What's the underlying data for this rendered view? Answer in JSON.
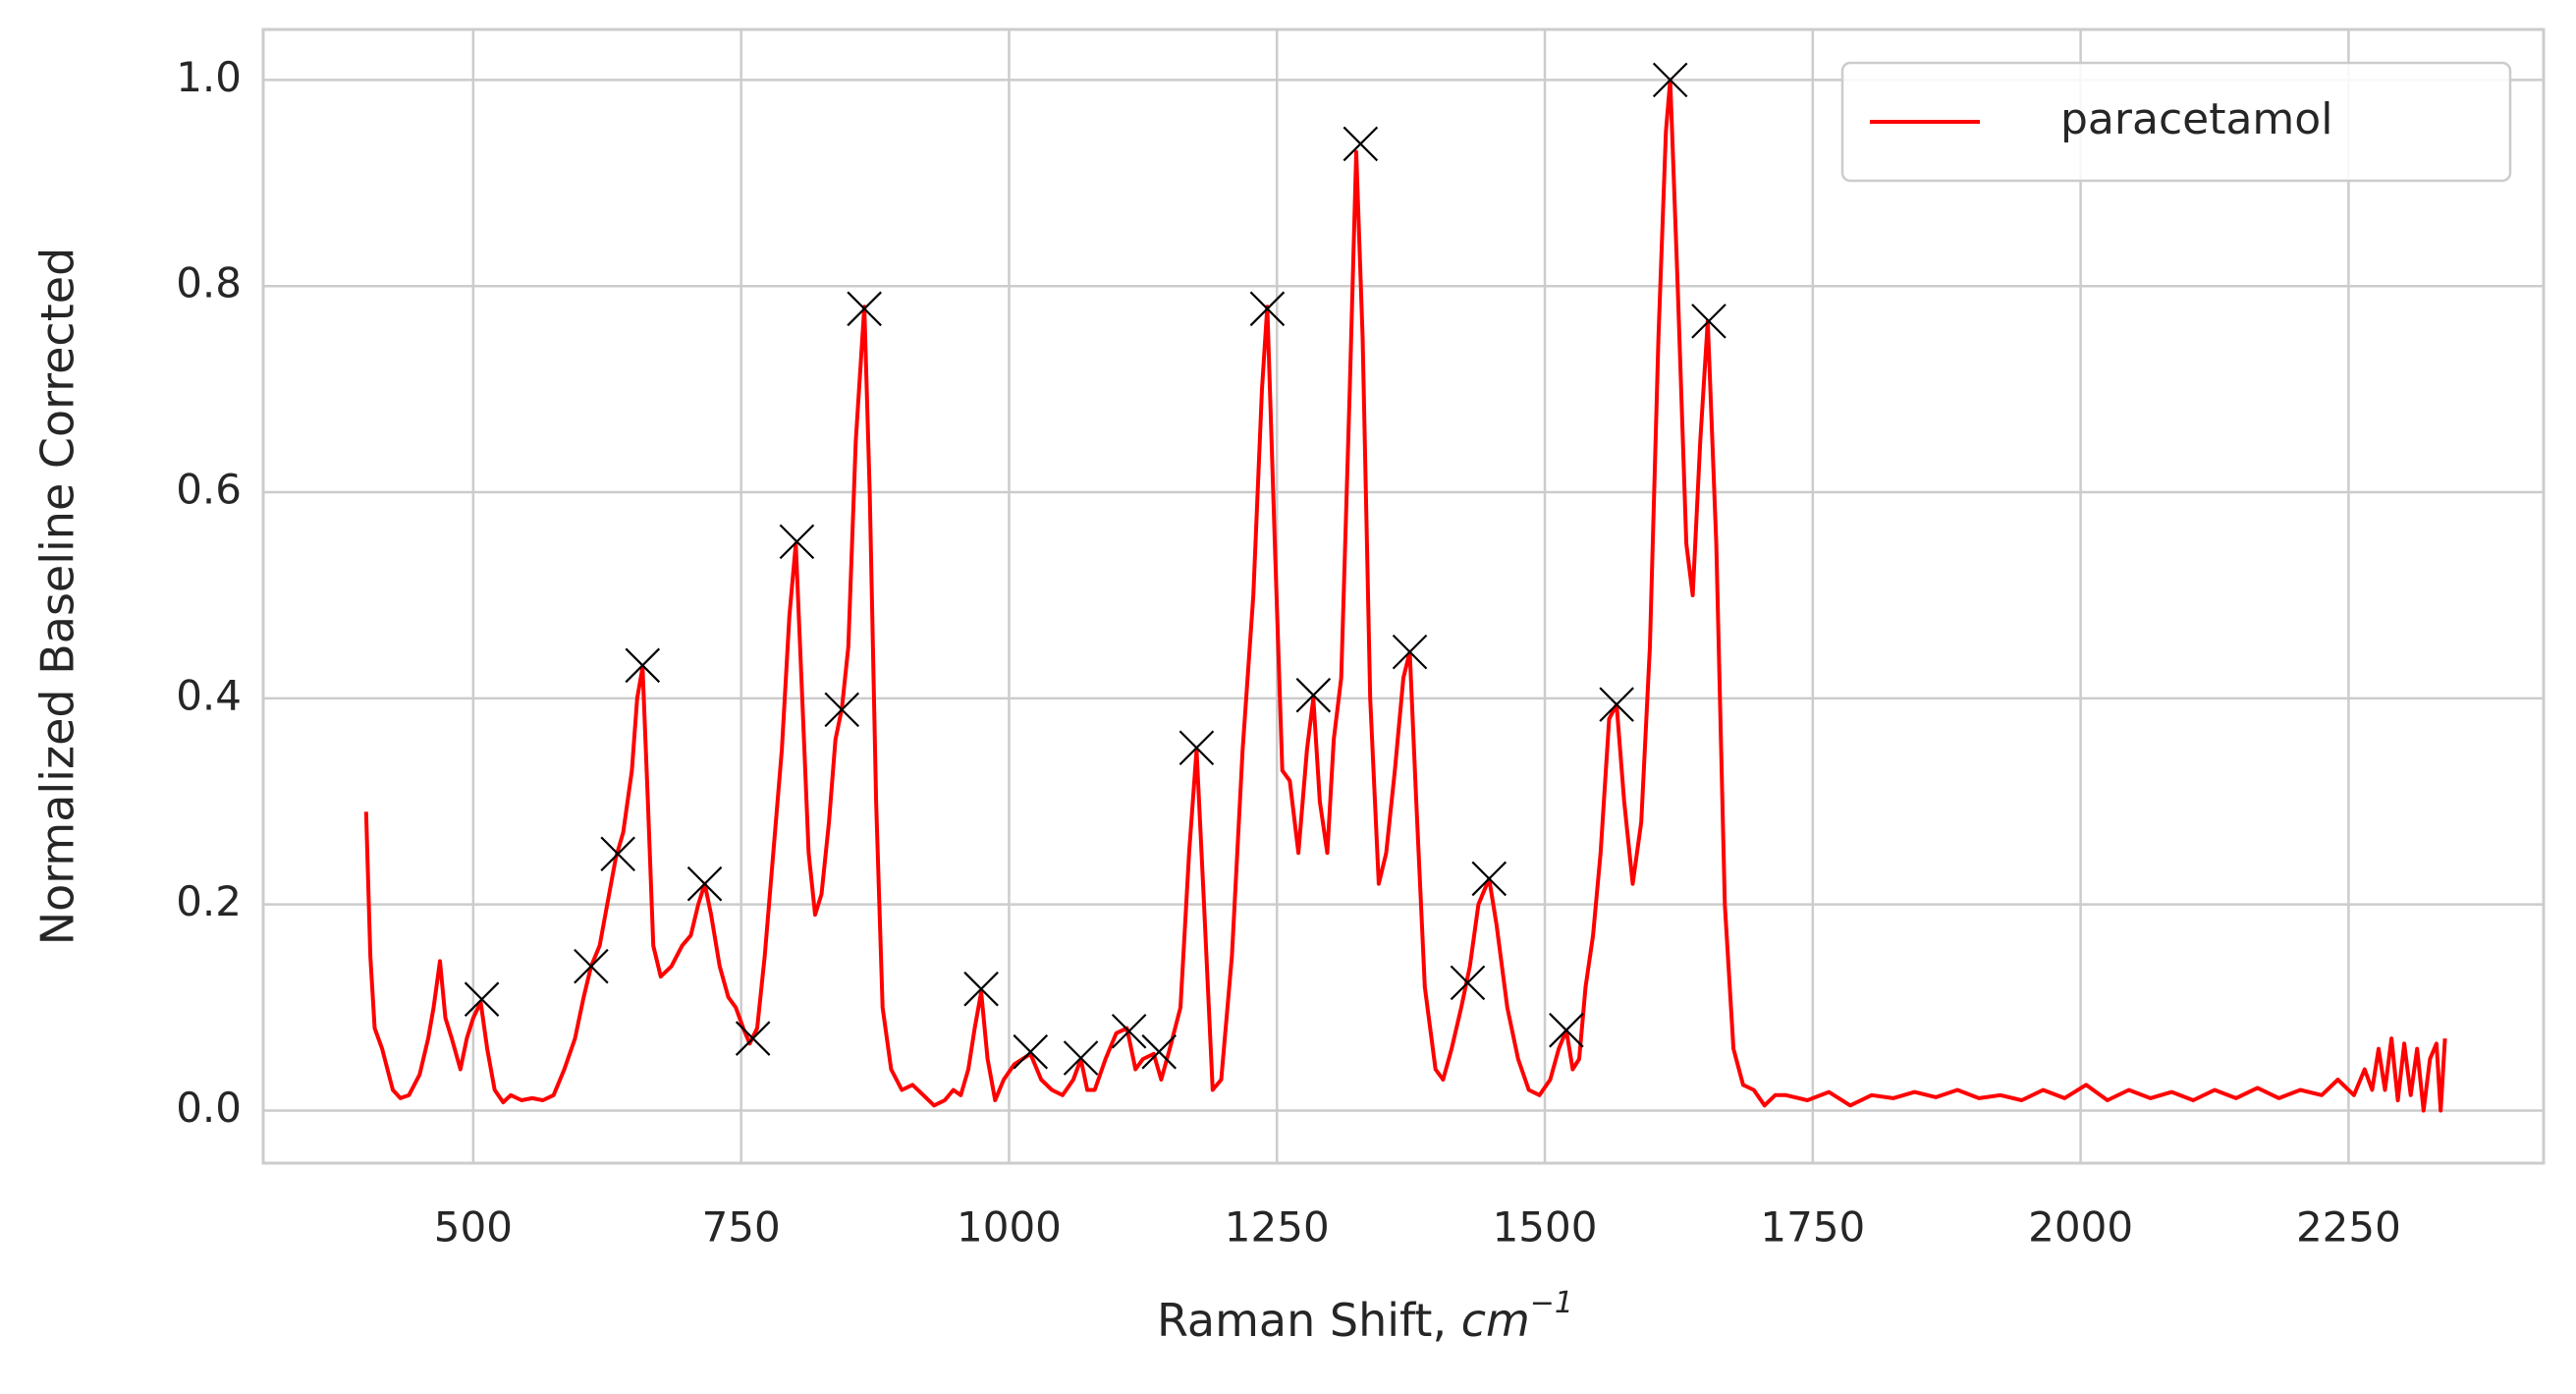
{
  "chart_data": {
    "type": "line",
    "xlabel": {
      "text": "Raman Shift, ",
      "unit": "cm",
      "exponent": "−1"
    },
    "ylabel": "Normalized Baseline Corrected",
    "xlim": [
      304,
      2432
    ],
    "ylim": [
      -0.051,
      1.049
    ],
    "xticks": [
      500,
      750,
      1000,
      1250,
      1500,
      1750,
      2000,
      2250
    ],
    "yticks": [
      {
        "value": 0,
        "label": "0.0"
      },
      0.2,
      0.4,
      0.6,
      0.8,
      {
        "value": 1,
        "label": "1.0"
      }
    ],
    "grid": true,
    "legend": "upper right",
    "series": [
      {
        "name": "paracetamol",
        "color": "#ff0000",
        "x": [
          400,
          404,
          408,
          415,
          425,
          432,
          440,
          450,
          458,
          463,
          469,
          474,
          480,
          488,
          494,
          500,
          507,
          513,
          520,
          528,
          535,
          545,
          555,
          565,
          575,
          585,
          595,
          603,
          610,
          618,
          625,
          633,
          640,
          648,
          653,
          658,
          663,
          668,
          675,
          685,
          695,
          703,
          710,
          716,
          722,
          730,
          738,
          745,
          752,
          758,
          765,
          772,
          780,
          788,
          795,
          801,
          807,
          813,
          819,
          825,
          832,
          838,
          844,
          850,
          857,
          865,
          870,
          876,
          882,
          890,
          900,
          910,
          920,
          930,
          940,
          948,
          955,
          962,
          968,
          974,
          980,
          987,
          995,
          1005,
          1020,
          1030,
          1040,
          1050,
          1060,
          1067,
          1073,
          1080,
          1090,
          1100,
          1110,
          1118,
          1125,
          1135,
          1142,
          1150,
          1160,
          1168,
          1175,
          1182,
          1190,
          1198,
          1208,
          1218,
          1228,
          1236,
          1241,
          1248,
          1255,
          1262,
          1270,
          1278,
          1284,
          1290,
          1297,
          1303,
          1310,
          1318,
          1324,
          1330,
          1337,
          1345,
          1352,
          1360,
          1368,
          1374,
          1380,
          1388,
          1398,
          1405,
          1413,
          1422,
          1430,
          1438,
          1448,
          1455,
          1465,
          1475,
          1485,
          1495,
          1505,
          1513,
          1520,
          1526,
          1532,
          1538,
          1545,
          1552,
          1560,
          1567,
          1574,
          1582,
          1590,
          1598,
          1606,
          1613,
          1617,
          1624,
          1632,
          1638,
          1645,
          1652,
          1660,
          1668,
          1676,
          1685,
          1695,
          1705,
          1715,
          1725,
          1745,
          1765,
          1785,
          1805,
          1825,
          1845,
          1865,
          1885,
          1905,
          1925,
          1945,
          1965,
          1985,
          2005,
          2025,
          2045,
          2065,
          2085,
          2105,
          2125,
          2145,
          2165,
          2185,
          2205,
          2225,
          2240,
          2255,
          2265,
          2272,
          2278,
          2284,
          2290,
          2296,
          2302,
          2308,
          2314,
          2320,
          2326,
          2332,
          2336,
          2340
        ],
        "values": [
          0.29,
          0.15,
          0.08,
          0.06,
          0.02,
          0.012,
          0.015,
          0.035,
          0.07,
          0.1,
          0.145,
          0.09,
          0.07,
          0.04,
          0.07,
          0.09,
          0.105,
          0.06,
          0.02,
          0.008,
          0.015,
          0.01,
          0.012,
          0.01,
          0.015,
          0.04,
          0.07,
          0.11,
          0.14,
          0.16,
          0.2,
          0.245,
          0.27,
          0.33,
          0.4,
          0.43,
          0.3,
          0.16,
          0.13,
          0.14,
          0.16,
          0.17,
          0.2,
          0.22,
          0.19,
          0.14,
          0.11,
          0.1,
          0.08,
          0.065,
          0.08,
          0.15,
          0.25,
          0.35,
          0.48,
          0.55,
          0.4,
          0.25,
          0.19,
          0.21,
          0.28,
          0.36,
          0.39,
          0.45,
          0.65,
          0.78,
          0.6,
          0.3,
          0.1,
          0.04,
          0.02,
          0.025,
          0.015,
          0.005,
          0.01,
          0.02,
          0.015,
          0.04,
          0.08,
          0.115,
          0.05,
          0.01,
          0.03,
          0.045,
          0.055,
          0.03,
          0.02,
          0.015,
          0.03,
          0.05,
          0.02,
          0.02,
          0.05,
          0.075,
          0.08,
          0.04,
          0.05,
          0.055,
          0.03,
          0.06,
          0.1,
          0.25,
          0.35,
          0.2,
          0.02,
          0.03,
          0.15,
          0.35,
          0.5,
          0.7,
          0.78,
          0.55,
          0.33,
          0.32,
          0.25,
          0.35,
          0.4,
          0.3,
          0.25,
          0.36,
          0.42,
          0.7,
          0.93,
          0.75,
          0.4,
          0.22,
          0.25,
          0.33,
          0.42,
          0.445,
          0.3,
          0.12,
          0.04,
          0.03,
          0.06,
          0.1,
          0.14,
          0.2,
          0.225,
          0.18,
          0.1,
          0.05,
          0.02,
          0.015,
          0.03,
          0.06,
          0.078,
          0.04,
          0.05,
          0.12,
          0.17,
          0.25,
          0.38,
          0.394,
          0.3,
          0.22,
          0.28,
          0.45,
          0.75,
          0.95,
          1.0,
          0.8,
          0.55,
          0.5,
          0.65,
          0.766,
          0.55,
          0.2,
          0.06,
          0.025,
          0.02,
          0.005,
          0.015,
          0.015,
          0.01,
          0.018,
          0.005,
          0.015,
          0.012,
          0.018,
          0.013,
          0.02,
          0.012,
          0.015,
          0.01,
          0.02,
          0.012,
          0.025,
          0.01,
          0.02,
          0.012,
          0.018,
          0.01,
          0.02,
          0.012,
          0.022,
          0.012,
          0.02,
          0.015,
          0.03,
          0.015,
          0.04,
          0.02,
          0.06,
          0.02,
          0.07,
          0.01,
          0.065,
          0.015,
          0.06,
          0.0,
          0.05,
          0.065,
          0.0,
          0.07
        ]
      },
      {
        "type": "scatter",
        "marker": "x",
        "color": "#000000",
        "x": [
          508,
          610,
          635,
          658,
          716,
          761,
          802,
          844,
          865,
          974,
          1020,
          1067,
          1112,
          1140,
          1175,
          1241,
          1284,
          1328,
          1374,
          1428,
          1448,
          1520,
          1567,
          1617,
          1653
        ],
        "values": [
          0.108,
          0.14,
          0.249,
          0.432,
          0.22,
          0.07,
          0.552,
          0.389,
          0.778,
          0.118,
          0.057,
          0.051,
          0.077,
          0.057,
          0.352,
          0.778,
          0.403,
          0.938,
          0.445,
          0.124,
          0.225,
          0.078,
          0.394,
          1.0,
          0.766
        ]
      }
    ]
  }
}
